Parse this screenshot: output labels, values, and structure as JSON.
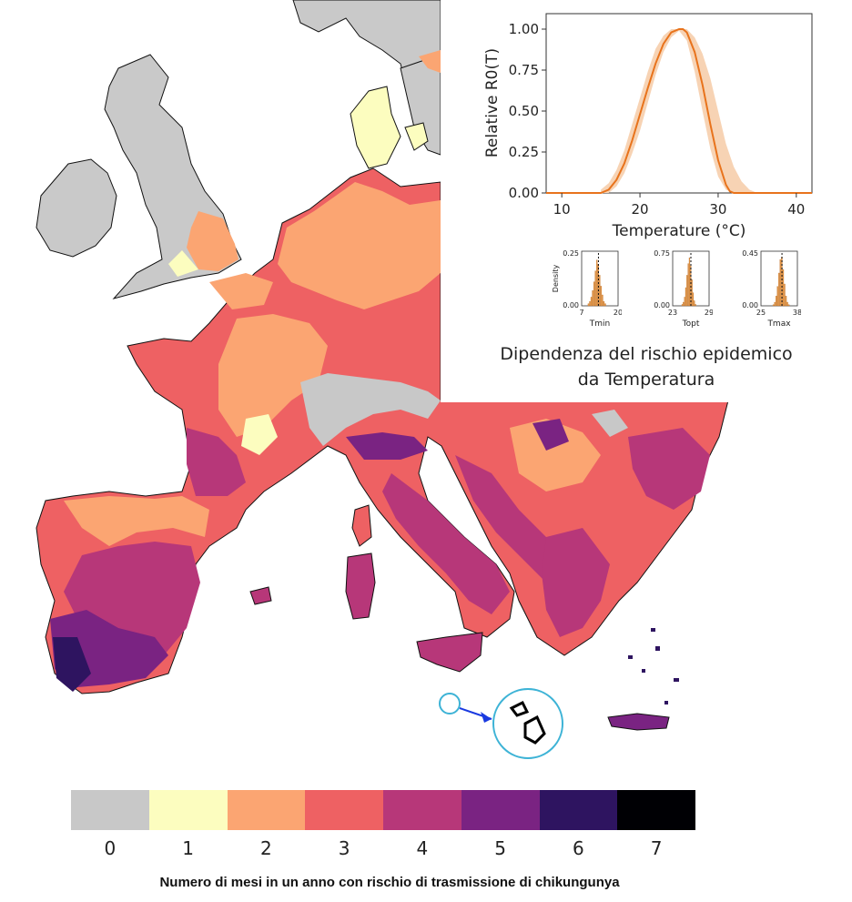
{
  "map": {
    "land_colors": {
      "uk_ireland": "#c9c9c9",
      "scandinavia": "#c9c9c9"
    }
  },
  "legend": {
    "categories": [
      {
        "label": "0",
        "color": "#c8c8c8"
      },
      {
        "label": "1",
        "color": "#fcfdbf"
      },
      {
        "label": "2",
        "color": "#fba572"
      },
      {
        "label": "3",
        "color": "#ee6163"
      },
      {
        "label": "4",
        "color": "#b73779"
      },
      {
        "label": "5",
        "color": "#7a2382"
      },
      {
        "label": "6",
        "color": "#2e1460"
      },
      {
        "label": "7",
        "color": "#000004"
      }
    ],
    "title": "Numero di mesi in un anno con rischio di trasmissione di chikungunya"
  },
  "inset": {
    "caption_line1": "Dipendenza del rischio epidemico",
    "caption_line2": "da Temperatura"
  },
  "chart_data": [
    {
      "type": "line",
      "xlabel": "Temperature (°C)",
      "ylabel": "Relative R0(T)",
      "xlim": [
        8,
        42
      ],
      "ylim": [
        0,
        1.05
      ],
      "xticks": [
        10,
        20,
        30,
        40
      ],
      "yticks": [
        0.0,
        0.25,
        0.5,
        0.75,
        1.0
      ],
      "ytick_labels": [
        "0.00",
        "0.25",
        "0.50",
        "0.75",
        "1.00"
      ],
      "color": "#e8731c",
      "band_color": "#f7d3b4",
      "series": [
        {
          "x": [
            8,
            15,
            16,
            17,
            18,
            19,
            20,
            21,
            22,
            23,
            24,
            25,
            25.5,
            26,
            27,
            28,
            29,
            30,
            31,
            31.5,
            32,
            42
          ],
          "y": [
            0,
            0,
            0.02,
            0.08,
            0.18,
            0.32,
            0.48,
            0.64,
            0.79,
            0.91,
            0.98,
            1.0,
            1.0,
            0.98,
            0.86,
            0.66,
            0.42,
            0.2,
            0.05,
            0.01,
            0,
            0
          ]
        }
      ],
      "band": {
        "x": [
          15,
          16,
          17,
          18,
          19,
          20,
          21,
          22,
          23,
          24,
          25,
          26,
          27,
          28,
          29,
          30,
          31,
          32,
          33,
          34,
          35
        ],
        "lower": [
          0,
          0,
          0.04,
          0.12,
          0.24,
          0.38,
          0.55,
          0.72,
          0.86,
          0.95,
          0.99,
          0.93,
          0.74,
          0.5,
          0.27,
          0.1,
          0.02,
          0,
          0,
          0,
          0
        ],
        "upper": [
          0.02,
          0.06,
          0.14,
          0.26,
          0.42,
          0.58,
          0.74,
          0.88,
          0.96,
          1.0,
          1.0,
          1.0,
          0.95,
          0.85,
          0.7,
          0.5,
          0.3,
          0.16,
          0.07,
          0.02,
          0
        ]
      }
    },
    {
      "type": "bar",
      "ylabel": "Density",
      "xlabel": "Tmin",
      "x_ticks": [
        "7",
        "20"
      ],
      "xlim": [
        7,
        20
      ],
      "y_ticks": [
        "0.25",
        "0.00"
      ],
      "ylim": [
        0,
        0.25
      ],
      "bins": [
        9.5,
        10,
        10.5,
        11,
        11.5,
        12,
        12.5,
        13,
        13.5,
        14,
        14.5,
        15,
        15.5
      ],
      "values": [
        0.01,
        0.02,
        0.04,
        0.07,
        0.11,
        0.16,
        0.21,
        0.19,
        0.14,
        0.09,
        0.05,
        0.02,
        0.01
      ],
      "mean": 13
    },
    {
      "type": "bar",
      "xlabel": "Topt",
      "x_ticks": [
        "23",
        "29"
      ],
      "xlim": [
        23,
        29
      ],
      "y_ticks": [
        "0.75",
        "0.00"
      ],
      "ylim": [
        0,
        0.75
      ],
      "bins": [
        24.6,
        24.8,
        25,
        25.2,
        25.4,
        25.6,
        25.8,
        26,
        26.2,
        26.4,
        26.6,
        26.8
      ],
      "values": [
        0.02,
        0.05,
        0.12,
        0.25,
        0.42,
        0.58,
        0.66,
        0.55,
        0.36,
        0.18,
        0.07,
        0.02
      ],
      "mean": 26
    },
    {
      "type": "bar",
      "xlabel": "Tmax",
      "x_ticks": [
        "25",
        "38"
      ],
      "xlim": [
        25,
        38
      ],
      "y_ticks": [
        "0.45",
        "0.00"
      ],
      "ylim": [
        0,
        0.45
      ],
      "bins": [
        29.5,
        30,
        30.5,
        31,
        31.5,
        32,
        32.5,
        33,
        33.5,
        34,
        34.5,
        35
      ],
      "values": [
        0.01,
        0.03,
        0.08,
        0.16,
        0.27,
        0.38,
        0.4,
        0.3,
        0.18,
        0.08,
        0.03,
        0.01
      ],
      "mean": 32.5
    }
  ]
}
